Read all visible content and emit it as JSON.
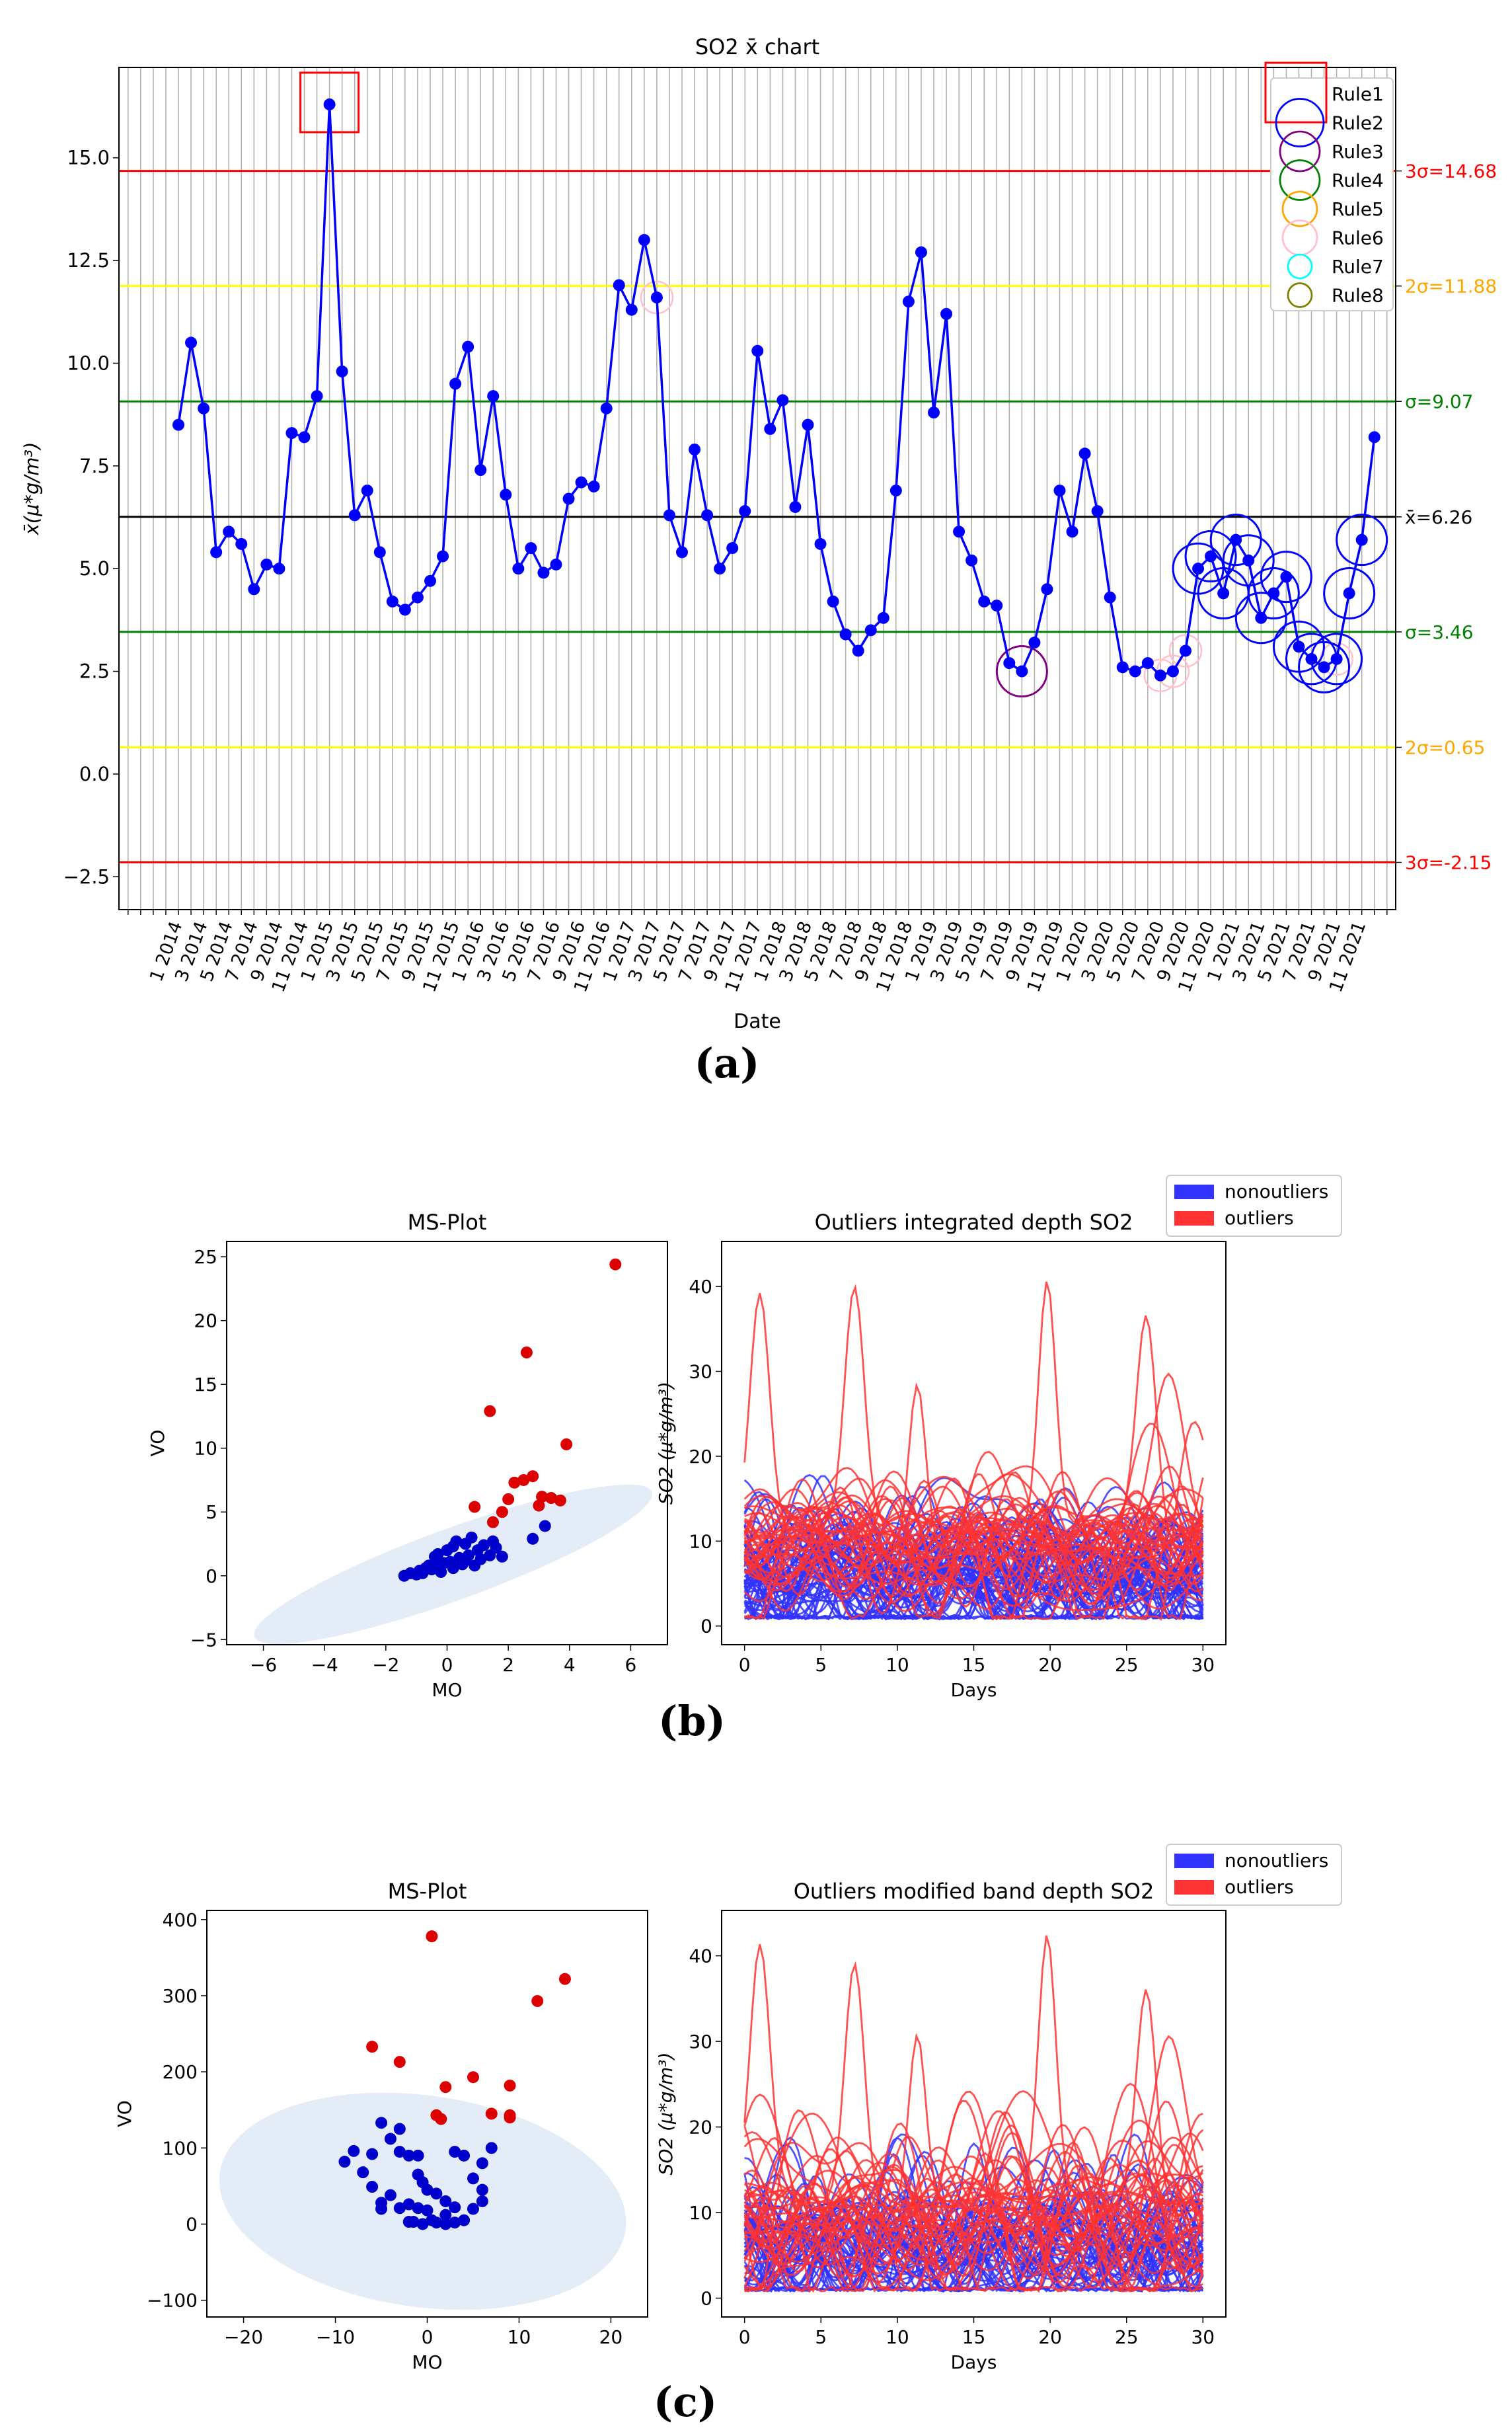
{
  "panels": {
    "a": "(a)",
    "b": "(b)",
    "c": "(c)"
  },
  "chart_data": [
    {
      "id": "a",
      "type": "line",
      "title": "SO2 x̄ chart",
      "xlabel": "Date",
      "ylabel": "x̄(μ*g/m³)",
      "ylim": [
        -3.3,
        17.2
      ],
      "yticks": [
        -2.5,
        0.0,
        2.5,
        5.0,
        7.5,
        10.0,
        12.5,
        15.0
      ],
      "ytick_labels": [
        "−2.5",
        "0.0",
        "2.5",
        "5.0",
        "7.5",
        "10.0",
        "12.5",
        "15.0"
      ],
      "xtick_labels": [
        "1 2014",
        "3 2014",
        "5 2014",
        "7 2014",
        "9 2014",
        "11 2014",
        "1 2015",
        "3 2015",
        "5 2015",
        "7 2015",
        "9 2015",
        "11 2015",
        "1 2016",
        "3 2016",
        "5 2016",
        "7 2016",
        "9 2016",
        "11 2016",
        "1 2017",
        "3 2017",
        "5 2017",
        "7 2017",
        "9 2017",
        "11 2017",
        "1 2018",
        "3 2018",
        "5 2018",
        "7 2018",
        "9 2018",
        "11 2018",
        "1 2019",
        "3 2019",
        "5 2019",
        "7 2019",
        "9 2019",
        "11 2019",
        "1 2020",
        "3 2020",
        "5 2020",
        "7 2020",
        "9 2020",
        "11 2020",
        "1 2021",
        "3 2021",
        "5 2021",
        "7 2021",
        "9 2021",
        "11 2021"
      ],
      "values": [
        8.5,
        10.5,
        8.9,
        5.4,
        5.9,
        5.6,
        4.5,
        5.1,
        5.0,
        8.3,
        8.2,
        9.2,
        16.3,
        9.8,
        6.3,
        6.9,
        5.4,
        4.2,
        4.0,
        4.3,
        4.7,
        5.3,
        9.5,
        10.4,
        7.4,
        9.2,
        6.8,
        5.0,
        5.5,
        4.9,
        5.1,
        6.7,
        7.1,
        7.0,
        8.9,
        11.9,
        11.3,
        13.0,
        11.6,
        6.3,
        5.4,
        7.9,
        6.3,
        5.0,
        5.5,
        6.4,
        10.3,
        8.4,
        9.1,
        6.5,
        8.5,
        5.6,
        4.2,
        3.4,
        3.0,
        3.5,
        3.8,
        6.9,
        11.5,
        12.7,
        8.8,
        11.2,
        5.9,
        5.2,
        4.2,
        4.1,
        2.7,
        2.5,
        3.2,
        4.5,
        6.9,
        5.9,
        7.8,
        6.4,
        4.3,
        2.6,
        2.5,
        2.7,
        2.4,
        2.5,
        3.0,
        5.0,
        5.3,
        4.4,
        5.7,
        5.2,
        3.8,
        4.4,
        4.8,
        3.1,
        2.8,
        2.6,
        2.8,
        4.4,
        5.7,
        8.2
      ],
      "control_lines": [
        {
          "value": 14.68,
          "label": "3σ=14.68",
          "color": "#ff0000"
        },
        {
          "value": 11.88,
          "label": "2σ=11.88",
          "color": "#ffff00",
          "label_color": "#ffa500"
        },
        {
          "value": 9.07,
          "label": "σ=9.07",
          "color": "#008000"
        },
        {
          "value": 6.26,
          "label": "x̄=6.26",
          "color": "#000000"
        },
        {
          "value": 3.46,
          "label": "σ=3.46",
          "color": "#008000"
        },
        {
          "value": 0.65,
          "label": "2σ=0.65",
          "color": "#ffff00",
          "label_color": "#ffa500"
        },
        {
          "value": -2.15,
          "label": "3σ=-2.15",
          "color": "#ff0000"
        }
      ],
      "legend": [
        {
          "label": "Rule1",
          "color": "#ff0000",
          "marker": "square"
        },
        {
          "label": "Rule2",
          "color": "#0000ff"
        },
        {
          "label": "Rule3",
          "color": "#800080"
        },
        {
          "label": "Rule4",
          "color": "#008000"
        },
        {
          "label": "Rule5",
          "color": "#ffa500"
        },
        {
          "label": "Rule6",
          "color": "#ffc0cb"
        },
        {
          "label": "Rule7",
          "color": "#00ffff"
        },
        {
          "label": "Rule8",
          "color": "#808000"
        }
      ],
      "rule1_points": [
        12
      ],
      "rule2_points": [
        81,
        82,
        83,
        84,
        85,
        86,
        87,
        88,
        89,
        90,
        91,
        92,
        93,
        94
      ],
      "rule3_points": [
        67
      ],
      "rule6_points": [
        38,
        78,
        79,
        80,
        92
      ],
      "series_color": "#0000ff"
    },
    {
      "id": "b",
      "type": "scatter",
      "title": "MS-Plot",
      "xlabel": "MO",
      "ylabel": "VO",
      "xlim": [
        -7.2,
        7.2
      ],
      "ylim": [
        -5.4,
        26.2
      ],
      "xticks": [
        -6,
        -4,
        -2,
        0,
        2,
        4,
        6
      ],
      "xtick_labels": [
        "−6",
        "−4",
        "−2",
        "0",
        "2",
        "4",
        "6"
      ],
      "yticks": [
        -5,
        0,
        5,
        10,
        15,
        20,
        25
      ],
      "ytick_labels": [
        "−5",
        "0",
        "5",
        "10",
        "15",
        "20",
        "25"
      ],
      "ellipse": {
        "cx": 0.2,
        "cy": 0.9,
        "rx": 6.4,
        "ry": 1.5,
        "angle_deg": 19
      },
      "outliers": [
        [
          5.5,
          24.4
        ],
        [
          2.6,
          17.5
        ],
        [
          1.4,
          12.9
        ],
        [
          3.9,
          10.3
        ],
        [
          2.2,
          7.3
        ],
        [
          2.5,
          7.5
        ],
        [
          2.8,
          7.8
        ],
        [
          3.1,
          6.2
        ],
        [
          3.4,
          6.1
        ],
        [
          3.7,
          5.9
        ],
        [
          2.0,
          6.0
        ],
        [
          1.8,
          5.0
        ],
        [
          0.9,
          5.4
        ],
        [
          1.5,
          4.2
        ],
        [
          3.0,
          5.5
        ]
      ],
      "nonoutliers": [
        [
          -1.4,
          0.0
        ],
        [
          -1.2,
          0.2
        ],
        [
          -1.0,
          0.1
        ],
        [
          -0.9,
          0.4
        ],
        [
          -0.8,
          0.2
        ],
        [
          -0.6,
          0.8
        ],
        [
          -0.5,
          0.5
        ],
        [
          -0.4,
          1.5
        ],
        [
          -0.3,
          0.9
        ],
        [
          -0.2,
          0.3
        ],
        [
          -0.1,
          1.0
        ],
        [
          0.0,
          2.0
        ],
        [
          0.1,
          1.1
        ],
        [
          0.2,
          0.6
        ],
        [
          0.3,
          2.7
        ],
        [
          0.4,
          1.4
        ],
        [
          0.5,
          0.9
        ],
        [
          0.6,
          2.5
        ],
        [
          0.7,
          1.6
        ],
        [
          0.8,
          3.0
        ],
        [
          0.9,
          0.8
        ],
        [
          1.0,
          2.0
        ],
        [
          1.1,
          1.3
        ],
        [
          1.2,
          2.4
        ],
        [
          1.4,
          1.6
        ],
        [
          1.6,
          2.2
        ],
        [
          1.8,
          1.5
        ],
        [
          -0.7,
          0.6
        ],
        [
          -0.3,
          1.7
        ],
        [
          0.2,
          2.3
        ],
        [
          0.6,
          1.2
        ],
        [
          2.8,
          2.9
        ],
        [
          3.2,
          3.9
        ],
        [
          1.5,
          2.7
        ]
      ],
      "legend": [
        {
          "label": "nonoutliers",
          "color": "#3333ff"
        },
        {
          "label": "outliers",
          "color": "#ff3333"
        }
      ]
    },
    {
      "id": "b2",
      "type": "line",
      "title": "Outliers integrated depth SO2",
      "xlabel": "Days",
      "ylabel": "SO2 (μ*g/m³)",
      "xlim": [
        -1.5,
        31.5
      ],
      "ylim": [
        -2.2,
        45.3
      ],
      "xticks": [
        0,
        5,
        10,
        15,
        20,
        25,
        30
      ],
      "yticks": [
        0,
        10,
        20,
        30,
        40
      ],
      "n_curves": {
        "blue": 60,
        "red": 35
      }
    },
    {
      "id": "c",
      "type": "scatter",
      "title": "MS-Plot",
      "xlabel": "MO",
      "ylabel": "VO",
      "xlim": [
        -24,
        24
      ],
      "ylim": [
        -122,
        412
      ],
      "xticks": [
        -20,
        -10,
        0,
        10,
        20
      ],
      "xtick_labels": [
        "−20",
        "−10",
        "0",
        "10",
        "20"
      ],
      "yticks": [
        -100,
        0,
        100,
        200,
        300,
        400
      ],
      "ytick_labels": [
        "−100",
        "0",
        "100",
        "200",
        "300",
        "400"
      ],
      "ellipse": {
        "cx": -0.5,
        "cy": 30,
        "rx": 25,
        "ry": 130,
        "angle_deg": 0
      },
      "outliers": [
        [
          0.5,
          378
        ],
        [
          15,
          322
        ],
        [
          12,
          293
        ],
        [
          -6,
          233
        ],
        [
          -3,
          213
        ],
        [
          5,
          193
        ],
        [
          2,
          180
        ],
        [
          9,
          182
        ],
        [
          1,
          143
        ],
        [
          1.5,
          138
        ],
        [
          7,
          145
        ],
        [
          9,
          143
        ],
        [
          9,
          140
        ]
      ],
      "nonoutliers": [
        [
          -6,
          92
        ],
        [
          -5,
          133
        ],
        [
          -3,
          125
        ],
        [
          -4,
          112
        ],
        [
          -3,
          95
        ],
        [
          -2,
          90
        ],
        [
          -1,
          90
        ],
        [
          -8,
          96
        ],
        [
          -7,
          68
        ],
        [
          -6,
          49
        ],
        [
          -5,
          28
        ],
        [
          -5,
          20
        ],
        [
          -4,
          38
        ],
        [
          -3,
          21
        ],
        [
          -2,
          26
        ],
        [
          -1,
          21
        ],
        [
          0,
          18
        ],
        [
          0.5,
          5
        ],
        [
          1,
          2
        ],
        [
          2,
          0
        ],
        [
          3,
          2
        ],
        [
          4,
          5
        ],
        [
          -0.5,
          0
        ],
        [
          -1.5,
          3
        ],
        [
          -2,
          3
        ],
        [
          -1,
          65
        ],
        [
          -0.5,
          55
        ],
        [
          0,
          45
        ],
        [
          1,
          40
        ],
        [
          2,
          30
        ],
        [
          3,
          22
        ],
        [
          3,
          95
        ],
        [
          4,
          90
        ],
        [
          5,
          60
        ],
        [
          6,
          45
        ],
        [
          6,
          30
        ],
        [
          6,
          80
        ],
        [
          5,
          20
        ],
        [
          7,
          100
        ],
        [
          2,
          12
        ],
        [
          -9,
          82
        ]
      ],
      "legend": [
        {
          "label": "nonoutliers",
          "color": "#3333ff"
        },
        {
          "label": "outliers",
          "color": "#ff3333"
        }
      ]
    },
    {
      "id": "c2",
      "type": "line",
      "title": "Outliers modified band depth SO2",
      "xlabel": "Days",
      "ylabel": "SO2 (μ*g/m³)",
      "xlim": [
        -1.5,
        31.5
      ],
      "ylim": [
        -2.2,
        45.3
      ],
      "xticks": [
        0,
        5,
        10,
        15,
        20,
        25,
        30
      ],
      "yticks": [
        0,
        10,
        20,
        30,
        40
      ],
      "n_curves": {
        "blue": 50,
        "red": 35
      }
    }
  ]
}
